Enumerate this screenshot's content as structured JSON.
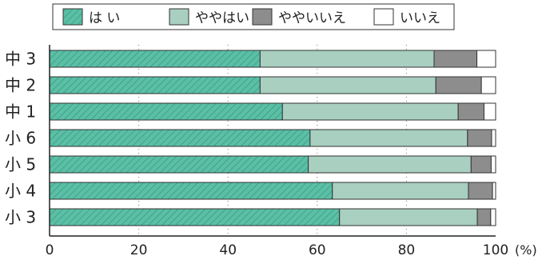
{
  "chart_data": {
    "type": "bar",
    "orientation": "horizontal",
    "stacked": true,
    "categories": [
      "中 3",
      "中 2",
      "中 1",
      "小 6",
      "小 5",
      "小 4",
      "小 3"
    ],
    "series": [
      {
        "name": "は い",
        "values": [
          47.2,
          47.2,
          52.2,
          58.4,
          58.0,
          63.4,
          65.0
        ],
        "color": "#5bbfa6",
        "pattern": "hatch"
      },
      {
        "name": "ややはい",
        "values": [
          39.0,
          39.4,
          39.4,
          35.3,
          36.5,
          30.5,
          30.9
        ],
        "color": "#a8cfc0"
      },
      {
        "name": "ややいいえ",
        "values": [
          9.6,
          10.2,
          5.8,
          5.4,
          4.5,
          5.4,
          3.0
        ],
        "color": "#8d8d8d"
      },
      {
        "name": "いいえ",
        "values": [
          4.2,
          3.2,
          2.6,
          0.9,
          1.0,
          0.7,
          1.1
        ],
        "color": "#ffffff"
      }
    ],
    "xlim": [
      0,
      100
    ],
    "xticks": [
      "0",
      "20",
      "40",
      "60",
      "80",
      "100"
    ],
    "xunit": "(%)",
    "grid": "dotted-vertical",
    "legend_position": "top"
  }
}
